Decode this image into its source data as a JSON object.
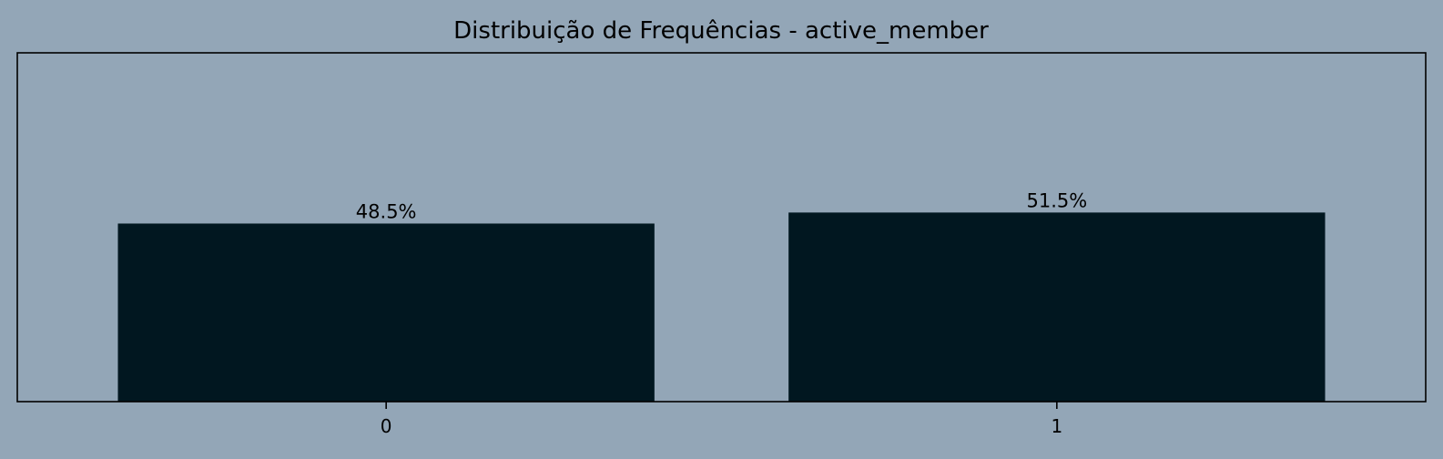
{
  "colors": {
    "background": "#93a6b7",
    "bar": "#011720",
    "axis": "#000000"
  },
  "chart_data": {
    "type": "bar",
    "title": "Distribuição de Frequências - active_member",
    "xlabel": "",
    "ylabel": "",
    "categories": [
      "0",
      "1"
    ],
    "values": [
      48.5,
      51.5
    ],
    "value_labels": [
      "48.5%",
      "51.5%"
    ],
    "ylim": [
      0,
      95
    ],
    "y_ticks_visible": false,
    "grid": false,
    "legend": "none"
  }
}
